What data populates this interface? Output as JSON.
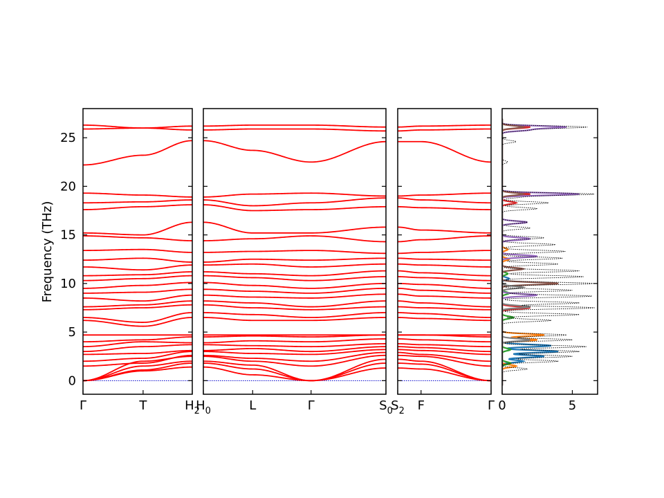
{
  "chart_data": {
    "type": "line",
    "ylabel": "Frequency (THz)",
    "ylim": [
      -1.4,
      28
    ],
    "grid": false,
    "band_color": "#ff0000",
    "zero_line_color": "#0000cc",
    "yticks": [
      0,
      5,
      10,
      15,
      20,
      25
    ],
    "segments": [
      {
        "labels": [
          {
            "text": "Γ",
            "pos": 0
          },
          {
            "text": "T",
            "pos": 0.55
          },
          {
            "text": "H",
            "sub": "2",
            "pos": 1
          }
        ],
        "bands": [
          [
            0,
            1.0,
            1.4
          ],
          [
            0,
            1.1,
            1.8
          ],
          [
            0,
            1.5,
            2.0
          ],
          [
            0,
            2.0,
            2.5
          ],
          [
            1.5,
            1.8,
            2.6
          ],
          [
            2.0,
            2.3,
            3.0
          ],
          [
            2.7,
            2.8,
            3.1
          ],
          [
            3.0,
            3.5,
            3.7
          ],
          [
            3.5,
            4.0,
            3.9
          ],
          [
            4.0,
            4.2,
            4.5
          ],
          [
            4.7,
            4.7,
            4.7
          ],
          [
            6.2,
            5.6,
            6.5
          ],
          [
            6.5,
            6.0,
            7.0
          ],
          [
            7.3,
            7.5,
            7.8
          ],
          [
            7.6,
            7.8,
            8.2
          ],
          [
            8.5,
            8.2,
            8.8
          ],
          [
            9.0,
            9.1,
            9.4
          ],
          [
            9.5,
            9.8,
            10.1
          ],
          [
            10.3,
            10.5,
            10.8
          ],
          [
            10.8,
            10.9,
            11.2
          ],
          [
            11.7,
            11.4,
            11.9
          ],
          [
            12.4,
            12.6,
            12.2
          ],
          [
            13.4,
            13.5,
            13.2
          ],
          [
            14.9,
            14.7,
            14.4
          ],
          [
            15.2,
            15.0,
            16.3
          ],
          [
            17.6,
            17.9,
            18.1
          ],
          [
            18.3,
            18.4,
            18.6
          ],
          [
            19.3,
            19.1,
            18.9
          ],
          [
            22.2,
            23.2,
            24.7
          ],
          [
            25.9,
            26.0,
            25.8
          ],
          [
            26.3,
            26.0,
            26.2
          ]
        ]
      },
      {
        "labels": [
          {
            "text": "H",
            "sub": "0",
            "pos": 0
          },
          {
            "text": "L",
            "pos": 0.27
          },
          {
            "text": "Γ",
            "pos": 0.59
          },
          {
            "text": "S",
            "sub": "0",
            "pos": 1
          }
        ],
        "bands": [
          [
            1.4,
            0.6,
            0,
            1.3
          ],
          [
            1.8,
            1.2,
            0,
            1.8
          ],
          [
            2.0,
            1.6,
            0,
            2.2
          ],
          [
            2.5,
            2.0,
            1.5,
            2.6
          ],
          [
            2.6,
            2.3,
            2.0,
            2.9
          ],
          [
            3.0,
            2.8,
            2.7,
            3.2
          ],
          [
            3.1,
            3.3,
            3.0,
            3.5
          ],
          [
            3.7,
            3.6,
            3.5,
            3.8
          ],
          [
            3.9,
            4.1,
            4.0,
            4.3
          ],
          [
            4.5,
            4.6,
            4.5,
            4.7
          ],
          [
            4.7,
            4.7,
            4.7,
            4.7
          ],
          [
            6.5,
            6.2,
            6.2,
            6.5
          ],
          [
            7.0,
            6.8,
            6.5,
            7.0
          ],
          [
            7.8,
            7.5,
            7.3,
            7.6
          ],
          [
            8.2,
            8.0,
            7.6,
            8.2
          ],
          [
            8.8,
            8.6,
            8.5,
            8.9
          ],
          [
            9.4,
            9.2,
            9.0,
            9.5
          ],
          [
            10.1,
            9.8,
            9.5,
            10.0
          ],
          [
            10.8,
            10.6,
            10.3,
            10.7
          ],
          [
            11.2,
            11.0,
            10.8,
            11.3
          ],
          [
            11.9,
            12.0,
            11.7,
            12.0
          ],
          [
            12.2,
            12.5,
            12.4,
            12.6
          ],
          [
            13.2,
            13.3,
            13.4,
            13.1
          ],
          [
            14.4,
            14.6,
            14.9,
            14.3
          ],
          [
            16.3,
            15.2,
            15.2,
            15.8
          ],
          [
            18.1,
            17.5,
            17.6,
            17.9
          ],
          [
            18.6,
            18.0,
            18.3,
            18.8
          ],
          [
            18.9,
            19.2,
            19.3,
            19.0
          ],
          [
            24.7,
            23.7,
            22.5,
            24.6
          ],
          [
            25.8,
            25.9,
            25.9,
            25.7
          ],
          [
            26.2,
            26.3,
            26.3,
            26.1
          ]
        ]
      },
      {
        "labels": [
          {
            "text": "S",
            "sub": "2",
            "pos": 0
          },
          {
            "text": "F",
            "pos": 0.25
          },
          {
            "text": "Γ",
            "pos": 1
          }
        ],
        "bands": [
          [
            1.3,
            1.2,
            0
          ],
          [
            1.8,
            1.7,
            0
          ],
          [
            2.2,
            2.0,
            0
          ],
          [
            2.6,
            2.5,
            1.5
          ],
          [
            2.9,
            2.7,
            2.0
          ],
          [
            3.2,
            3.1,
            2.7
          ],
          [
            3.5,
            3.4,
            3.0
          ],
          [
            3.8,
            3.7,
            3.5
          ],
          [
            4.3,
            4.2,
            4.0
          ],
          [
            4.7,
            4.7,
            4.5
          ],
          [
            4.7,
            4.7,
            4.7
          ],
          [
            6.5,
            6.4,
            6.2
          ],
          [
            7.0,
            6.9,
            6.5
          ],
          [
            7.6,
            7.5,
            7.3
          ],
          [
            8.2,
            8.0,
            7.6
          ],
          [
            8.9,
            8.7,
            8.5
          ],
          [
            9.5,
            9.3,
            9.0
          ],
          [
            10.0,
            9.9,
            9.5
          ],
          [
            10.7,
            10.6,
            10.3
          ],
          [
            11.3,
            11.1,
            10.8
          ],
          [
            12.0,
            11.9,
            11.7
          ],
          [
            12.6,
            12.5,
            12.4
          ],
          [
            13.1,
            13.2,
            13.4
          ],
          [
            14.3,
            14.5,
            14.9
          ],
          [
            15.8,
            15.5,
            15.2
          ],
          [
            17.9,
            17.8,
            17.6
          ],
          [
            18.8,
            18.6,
            18.3
          ],
          [
            19.0,
            19.1,
            19.3
          ],
          [
            24.6,
            24.6,
            22.5
          ],
          [
            25.7,
            25.8,
            25.9
          ],
          [
            26.1,
            26.2,
            26.3
          ]
        ]
      }
    ],
    "dos": {
      "xlim": [
        0,
        6.8
      ],
      "xticks": [
        0,
        5
      ],
      "total_color": "#000000",
      "total_style": "dotted",
      "pdos_colors": [
        "#1f77b4",
        "#ff7f0e",
        "#2ca02c",
        "#d62728",
        "#9467bd",
        "#8c564b",
        "#7f7f7f"
      ],
      "total_peaks": [
        {
          "f": 1.2,
          "a": 1.8
        },
        {
          "f": 2.0,
          "a": 4.0
        },
        {
          "f": 2.5,
          "a": 5.0
        },
        {
          "f": 3.0,
          "a": 5.5
        },
        {
          "f": 3.5,
          "a": 6.0
        },
        {
          "f": 4.2,
          "a": 5.0
        },
        {
          "f": 4.7,
          "a": 4.6
        },
        {
          "f": 6.2,
          "a": 3.5
        },
        {
          "f": 6.8,
          "a": 5.5
        },
        {
          "f": 7.5,
          "a": 6.6
        },
        {
          "f": 8.0,
          "a": 5.5
        },
        {
          "f": 8.7,
          "a": 6.4
        },
        {
          "f": 9.3,
          "a": 5.0
        },
        {
          "f": 10.0,
          "a": 6.6
        },
        {
          "f": 10.7,
          "a": 5.8
        },
        {
          "f": 11.3,
          "a": 5.5
        },
        {
          "f": 12.0,
          "a": 4.0
        },
        {
          "f": 12.6,
          "a": 4.3
        },
        {
          "f": 13.3,
          "a": 4.5
        },
        {
          "f": 14.0,
          "a": 3.8
        },
        {
          "f": 14.7,
          "a": 3.0
        },
        {
          "f": 15.7,
          "a": 2.0
        },
        {
          "f": 16.3,
          "a": 1.8
        },
        {
          "f": 17.7,
          "a": 2.5
        },
        {
          "f": 18.3,
          "a": 3.3
        },
        {
          "f": 18.9,
          "a": 1.2
        },
        {
          "f": 19.2,
          "a": 6.5
        },
        {
          "f": 22.5,
          "a": 0.4
        },
        {
          "f": 24.6,
          "a": 1.0
        },
        {
          "f": 25.8,
          "a": 1.8
        },
        {
          "f": 26.1,
          "a": 6.0
        }
      ],
      "pdos_peaks": [
        {
          "series": 0,
          "f": 2.5,
          "a": 3.0
        },
        {
          "series": 0,
          "f": 3.0,
          "a": 4.0
        },
        {
          "series": 0,
          "f": 3.6,
          "a": 3.5
        },
        {
          "series": 0,
          "f": 2.0,
          "a": 1.5
        },
        {
          "series": 0,
          "f": 10.5,
          "a": 0.5
        },
        {
          "series": 1,
          "f": 1.5,
          "a": 1.0
        },
        {
          "series": 1,
          "f": 4.2,
          "a": 2.5
        },
        {
          "series": 1,
          "f": 4.7,
          "a": 3.0
        },
        {
          "series": 1,
          "f": 12.5,
          "a": 0.5
        },
        {
          "series": 1,
          "f": 13.5,
          "a": 0.4
        },
        {
          "series": 2,
          "f": 1.8,
          "a": 0.6
        },
        {
          "series": 2,
          "f": 3.2,
          "a": 0.6
        },
        {
          "series": 2,
          "f": 6.5,
          "a": 0.8
        },
        {
          "series": 2,
          "f": 9.0,
          "a": 0.5
        },
        {
          "series": 2,
          "f": 11.0,
          "a": 0.4
        },
        {
          "series": 3,
          "f": 7.5,
          "a": 2.0
        },
        {
          "series": 3,
          "f": 18.3,
          "a": 1.0
        },
        {
          "series": 3,
          "f": 19.2,
          "a": 2.0
        },
        {
          "series": 3,
          "f": 26.1,
          "a": 2.0
        },
        {
          "series": 4,
          "f": 8.8,
          "a": 2.5
        },
        {
          "series": 4,
          "f": 12.8,
          "a": 2.5
        },
        {
          "series": 4,
          "f": 14.6,
          "a": 2.0
        },
        {
          "series": 4,
          "f": 16.3,
          "a": 1.8
        },
        {
          "series": 4,
          "f": 19.2,
          "a": 5.5
        },
        {
          "series": 4,
          "f": 25.8,
          "a": 1.8
        },
        {
          "series": 4,
          "f": 26.1,
          "a": 4.5
        },
        {
          "series": 5,
          "f": 10.0,
          "a": 4.0
        },
        {
          "series": 5,
          "f": 11.5,
          "a": 1.5
        },
        {
          "series": 5,
          "f": 19.2,
          "a": 1.5
        },
        {
          "series": 5,
          "f": 26.1,
          "a": 1.5
        },
        {
          "series": 6,
          "f": 7.6,
          "a": 2.0
        },
        {
          "series": 6,
          "f": 9.6,
          "a": 1.5
        },
        {
          "series": 6,
          "f": 4.2,
          "a": 2.0
        }
      ]
    }
  }
}
